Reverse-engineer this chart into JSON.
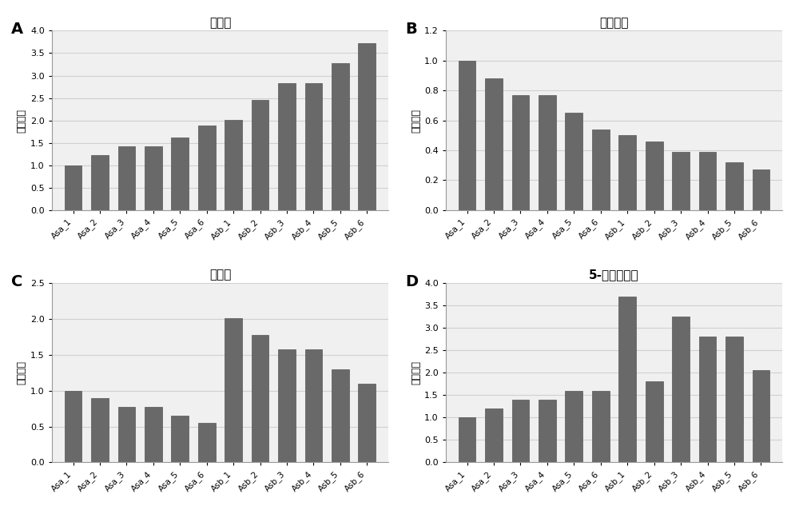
{
  "categories": [
    "Asa_1",
    "Asa_2",
    "Asa_3",
    "Asa_4",
    "Asa_5",
    "Asa_6",
    "Asb_1",
    "Asb_2",
    "Asb_3",
    "Asb_4",
    "Asb_5",
    "Asb_6"
  ],
  "A": {
    "title": "酰胺酸",
    "values": [
      1.0,
      1.22,
      1.42,
      1.42,
      1.62,
      1.88,
      2.02,
      2.45,
      2.83,
      2.83,
      3.27,
      3.72
    ],
    "ylim": [
      0.0,
      4.0
    ],
    "yticks": [
      0.0,
      0.5,
      1.0,
      1.5,
      2.0,
      2.5,
      3.0,
      3.5,
      4.0
    ]
  },
  "B": {
    "title": "苯丙氨酸",
    "values": [
      1.0,
      0.88,
      0.77,
      0.77,
      0.65,
      0.54,
      0.5,
      0.46,
      0.39,
      0.39,
      0.32,
      0.27
    ],
    "ylim": [
      0.0,
      1.2
    ],
    "yticks": [
      0.0,
      0.2,
      0.4,
      0.6,
      0.8,
      1.0,
      1.2
    ]
  },
  "C": {
    "title": "山奈酚",
    "values": [
      1.0,
      0.9,
      0.77,
      0.77,
      0.65,
      0.55,
      2.01,
      1.78,
      1.57,
      1.57,
      1.3,
      1.1
    ],
    "ylim": [
      0.0,
      2.5
    ],
    "yticks": [
      0.0,
      0.5,
      1.0,
      1.5,
      2.0,
      2.5
    ]
  },
  "D": {
    "title": "5-羟基色氨酸",
    "values": [
      1.0,
      1.2,
      1.4,
      1.4,
      1.6,
      1.6,
      3.7,
      1.8,
      3.25,
      2.8,
      2.8,
      2.05
    ],
    "ylim": [
      0.0,
      4.0
    ],
    "yticks": [
      0.0,
      0.5,
      1.0,
      1.5,
      2.0,
      2.5,
      3.0,
      3.5,
      4.0
    ]
  },
  "bar_color": "#696969",
  "bar_edge_color": "#555555",
  "ylabel": "浓度比例",
  "background_color": "#f5f5f5",
  "grid_color": "#d0d0d0",
  "panel_bg": "#f0f0f0"
}
